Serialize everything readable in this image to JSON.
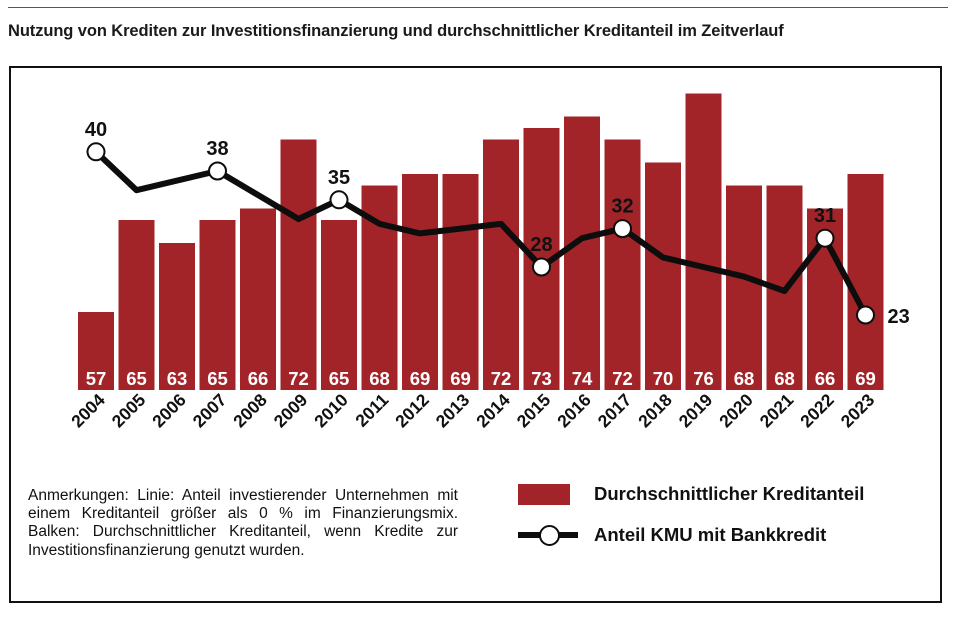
{
  "title": "Nutzung von Krediten zur Investitionsfinanzierung und durchschnittlicher Kreditanteil im Zeitverlauf",
  "notes": "Anmerkungen: Linie: Anteil investierender Un­ternehmen mit einem Kreditanteil größer als 0 % im Finanzierungsmix. Balken: Durchschnittlicher Kreditanteil, wenn Kredite zur Investitionsfinan­zierung genutzt wurden.",
  "legend": {
    "bar_label": "Durchschnittlicher Kreditanteil",
    "line_label": "Anteil KMU mit Bankkredit"
  },
  "colors": {
    "bar": "#a32428",
    "line": "#0d0d0d",
    "bar_label": "#ffffff"
  },
  "chart_data": {
    "type": "bar",
    "categories": [
      "2004",
      "2005",
      "2006",
      "2007",
      "2008",
      "2009",
      "2010",
      "2011",
      "2012",
      "2013",
      "2014",
      "2015",
      "2016",
      "2017",
      "2018",
      "2019",
      "2020",
      "2021",
      "2022",
      "2023"
    ],
    "series": [
      {
        "name": "Durchschnittlicher Kreditanteil",
        "type": "bar",
        "values": [
          57,
          65,
          63,
          65,
          66,
          72,
          65,
          68,
          69,
          69,
          72,
          73,
          74,
          72,
          70,
          76,
          68,
          68,
          66,
          69
        ]
      },
      {
        "name": "Anteil KMU mit Bankkredit",
        "type": "line",
        "values": [
          40,
          36,
          null,
          38,
          null,
          33,
          35,
          32.5,
          31.5,
          32,
          32.5,
          28,
          31,
          32,
          29,
          28,
          27,
          25.5,
          31,
          23
        ],
        "labeled_points": [
          "2004",
          "2007",
          "2010",
          "2015",
          "2017",
          "2022",
          "2023"
        ]
      }
    ]
  }
}
